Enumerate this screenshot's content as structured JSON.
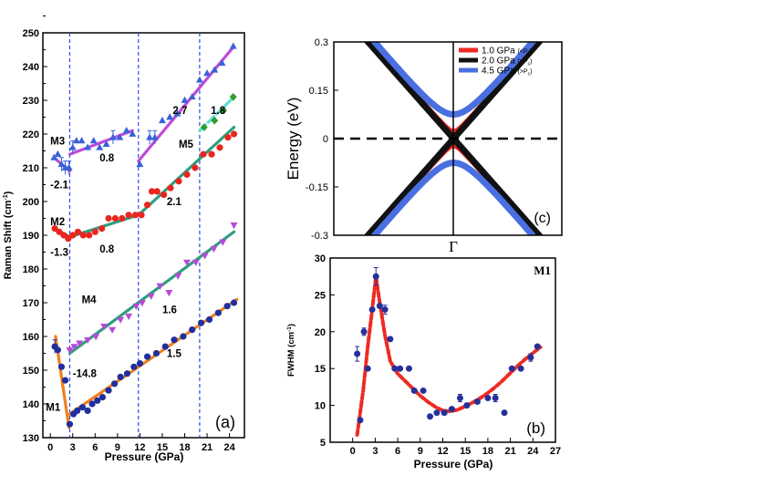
{
  "chart_data": [
    {
      "type": "scatter",
      "panel_label": "(a)",
      "xlabel": "Pressure (GPa)",
      "ylabel": "Raman Shift (cm",
      "ylabel_unit_sup": "-1",
      "ylabel_close": ")",
      "xlim": [
        -1,
        26
      ],
      "ylim": [
        130,
        250
      ],
      "xticks": [
        0,
        3,
        6,
        9,
        12,
        15,
        18,
        21,
        24
      ],
      "yticks": [
        130,
        140,
        150,
        160,
        170,
        180,
        190,
        200,
        210,
        220,
        230,
        240,
        250
      ],
      "transition_pressures": [
        2.6,
        11.8,
        20.0
      ],
      "marker_colors": {
        "M1": "#1f2f9e",
        "M2": "#e8261e",
        "M3": "#3a62d8",
        "M4": "#b64ad8",
        "M5": "#2e9e2e",
        "high": "#3a62d8"
      },
      "series": [
        {
          "name": "M1",
          "color": "#1f2f9e",
          "marker": "circle",
          "x": [
            0.6,
            1.0,
            1.5,
            2.0,
            2.6,
            3.1,
            3.6,
            4.3,
            5.0,
            5.6,
            6.3,
            7.0,
            7.8,
            8.6,
            9.4,
            10.3,
            11.2,
            12.0,
            13.0,
            14.2,
            15.4,
            16.6,
            17.8,
            19.0,
            20.2,
            21.3,
            22.5,
            23.7,
            24.6
          ],
          "y": [
            157,
            156,
            151,
            147,
            134,
            137,
            138,
            139,
            138,
            140,
            141,
            142,
            144,
            146,
            148,
            149,
            151,
            152,
            154,
            155,
            157,
            159,
            160,
            162,
            164,
            165,
            167,
            169,
            170
          ],
          "errors": [
            2,
            0,
            0,
            0,
            0,
            0,
            0,
            0,
            0,
            0,
            0,
            0,
            0,
            0,
            0,
            0,
            0,
            0,
            0,
            0,
            0,
            0,
            0,
            0,
            0,
            0,
            0,
            0,
            0
          ]
        },
        {
          "name": "M2",
          "color": "#e8261e",
          "marker": "circle",
          "x": [
            0.6,
            1.2,
            1.8,
            2.4,
            3.0,
            3.7,
            4.4,
            5.2,
            6.0,
            6.9,
            7.8,
            8.7,
            9.6,
            10.5,
            11.4,
            12.2,
            13.0,
            13.6,
            14.3,
            15.2,
            16.1,
            17.2,
            18.3,
            19.4,
            20.5,
            21.6,
            22.7,
            23.8,
            24.6
          ],
          "y": [
            192,
            191,
            190,
            189,
            190,
            191,
            190,
            190,
            191,
            192,
            195,
            195,
            195,
            196,
            196,
            196,
            199,
            203,
            203,
            202,
            204,
            206,
            208,
            210,
            214,
            214,
            216,
            219,
            220
          ]
        },
        {
          "name": "M3",
          "color": "#3a62d8",
          "marker": "triangle",
          "x": [
            0.5,
            1.0,
            1.5,
            2.0,
            2.5,
            3.0,
            3.5,
            4.2,
            5.0,
            5.8,
            6.6,
            7.5,
            8.4,
            9.3,
            10.2,
            11.0
          ],
          "y": [
            213,
            214,
            211,
            210,
            210,
            216,
            218,
            218,
            216,
            218,
            216,
            217,
            219,
            219,
            221,
            220
          ],
          "errors": [
            0,
            0,
            2,
            2,
            2,
            2,
            0,
            0,
            0,
            0,
            0,
            0,
            2,
            0,
            0,
            0
          ]
        },
        {
          "name": "high",
          "color": "#3a62d8",
          "marker": "triangle",
          "x": [
            12.0,
            13.3,
            14.0,
            15.0,
            16.0,
            17.0,
            18.0,
            19.0,
            20.0,
            21.0,
            22.0,
            23.0,
            24.5
          ],
          "y": [
            211,
            219,
            219,
            224,
            225,
            226,
            230,
            231,
            236,
            238,
            239,
            241,
            246
          ],
          "errors": [
            0,
            2,
            2,
            0,
            0,
            0,
            0,
            0,
            0,
            0,
            0,
            0,
            0
          ]
        },
        {
          "name": "M4",
          "color": "#b64ad8",
          "marker": "triangle-down",
          "x": [
            2.6,
            3.2,
            3.9,
            5.0,
            6.1,
            7.2,
            8.3,
            9.4,
            10.5,
            11.5,
            12.3,
            13.5,
            14.7,
            15.9,
            17.1,
            18.3,
            19.5,
            20.7,
            21.9,
            23.1,
            24.6
          ],
          "y": [
            156,
            157,
            158,
            159,
            160,
            163,
            162,
            165,
            166,
            169,
            170,
            172,
            175,
            173,
            178,
            182,
            182,
            184,
            186,
            188,
            193
          ]
        },
        {
          "name": "M5",
          "color": "#2e9e2e",
          "marker": "diamond",
          "x": [
            20.6,
            22.0,
            23.2,
            24.5
          ],
          "y": [
            222,
            224,
            227,
            231
          ]
        }
      ],
      "fits": [
        {
          "name": "M1 fit (low)",
          "color": "#f0801e",
          "x": [
            0.7,
            2.5
          ],
          "y": [
            160,
            133
          ]
        },
        {
          "name": "M1 fit (high)",
          "color": "#f0801e",
          "x": [
            2.6,
            25.0
          ],
          "y": [
            137,
            171
          ]
        },
        {
          "name": "M2 fit (low)",
          "color": "#a84440",
          "x": [
            0.5,
            2.6
          ],
          "y": [
            192,
            189.5
          ]
        },
        {
          "name": "M2 fit (mid)",
          "color": "#2e9e7e",
          "x": [
            2.6,
            11.8
          ],
          "y": [
            189.5,
            196
          ]
        },
        {
          "name": "M2 fit (high)",
          "color": "#2e9e7e",
          "x": [
            11.8,
            24.6
          ],
          "y": [
            196,
            222
          ]
        },
        {
          "name": "M3 fit (low)",
          "color": "#c04ad8",
          "x": [
            0.5,
            2.6
          ],
          "y": [
            213,
            209
          ]
        },
        {
          "name": "M3 fit (mid)",
          "color": "#c04ad8",
          "x": [
            2.6,
            11.0
          ],
          "y": [
            214,
            221
          ]
        },
        {
          "name": "high fit",
          "color": "#c04ad8",
          "x": [
            11.8,
            24.6
          ],
          "y": [
            212,
            246
          ]
        },
        {
          "name": "M4 fit",
          "color": "#2e9e7e",
          "x": [
            2.6,
            24.6
          ],
          "y": [
            155,
            191
          ]
        },
        {
          "name": "M5 fit",
          "color": "#5fe0d2",
          "x": [
            20.0,
            24.6
          ],
          "y": [
            221,
            231
          ]
        }
      ],
      "annotations": [
        {
          "text": "M3",
          "x": 0.0,
          "y": 218
        },
        {
          "text": "-2.1",
          "x": 0.0,
          "y": 205
        },
        {
          "text": "0.8",
          "x": 6.6,
          "y": 213
        },
        {
          "text": "M2",
          "x": 0.0,
          "y": 194
        },
        {
          "text": "-1.3",
          "x": 0.0,
          "y": 185
        },
        {
          "text": "0.8",
          "x": 6.6,
          "y": 186
        },
        {
          "text": "2.1",
          "x": 15.6,
          "y": 200
        },
        {
          "text": "M4",
          "x": 4.2,
          "y": 171
        },
        {
          "text": "1.6",
          "x": 15.0,
          "y": 168
        },
        {
          "text": "1.5",
          "x": 15.6,
          "y": 155
        },
        {
          "text": "-14.8",
          "x": 3.0,
          "y": 149
        },
        {
          "text": "M1",
          "x": -0.6,
          "y": 139
        },
        {
          "text": "2.7",
          "x": 16.4,
          "y": 227
        },
        {
          "text": "1.8",
          "x": 21.5,
          "y": 227
        },
        {
          "text": "M5",
          "x": 17.2,
          "y": 217
        }
      ]
    },
    {
      "type": "line",
      "panel_label": "(c)",
      "xlabel": "Γ",
      "ylabel": "Energy (eV)",
      "ylim": [
        -0.3,
        0.3
      ],
      "xlim": [
        -1,
        1
      ],
      "yticks": [
        -0.3,
        -0.15,
        0,
        0.15,
        0.3
      ],
      "ytick_labels": [
        "-0.3",
        "-0.15",
        "0",
        "0.15",
        "0.3"
      ],
      "legend": [
        {
          "label": "1.0 GPa",
          "tag": "(<P",
          "tag_sub": "c",
          "tag_close": ")",
          "color": "#ee2a24"
        },
        {
          "label": "2.0 GPa",
          "tag": "(=P",
          "tag_sub": "c",
          "tag_close": ")",
          "color": "#111111"
        },
        {
          "label": "4.5 GPa",
          "tag": "(>P",
          "tag_sub": "c",
          "tag_close": ")",
          "color": "#4a6fe0"
        }
      ],
      "bands": [
        {
          "name": "1.0 GPa",
          "color": "#ee2a24",
          "gap": 0.02,
          "velocity": 0.4
        },
        {
          "name": "2.0 GPa",
          "color": "#111111",
          "gap": 0.0,
          "velocity": 0.4
        },
        {
          "name": "4.5 GPa",
          "color": "#4a6fe0",
          "gap": 0.075,
          "velocity": 0.42
        }
      ]
    },
    {
      "type": "scatter",
      "panel_label": "(b)",
      "title": "M1",
      "xlabel": "Pressure (GPa)",
      "ylabel": "FWHM (cm",
      "ylabel_unit_sup": "-1",
      "ylabel_close": ")",
      "xlim": [
        -3,
        27
      ],
      "ylim": [
        5,
        30
      ],
      "xticks": [
        0,
        3,
        6,
        9,
        12,
        15,
        18,
        21,
        24,
        27
      ],
      "yticks": [
        5,
        10,
        15,
        20,
        25,
        30
      ],
      "series": [
        {
          "name": "M1 FWHM",
          "color": "#25309a",
          "marker": "circle",
          "x": [
            0.6,
            1.0,
            1.5,
            2.0,
            2.6,
            3.1,
            3.6,
            4.3,
            5.0,
            5.6,
            6.3,
            7.5,
            8.2,
            9.4,
            10.3,
            11.2,
            12.2,
            13.2,
            14.3,
            15.2,
            16.6,
            18.0,
            19.0,
            20.2,
            21.2,
            22.4,
            23.7,
            24.6
          ],
          "y": [
            17,
            8,
            20,
            15,
            23,
            27.5,
            23.5,
            23,
            19,
            15,
            15,
            15,
            12,
            12,
            8.5,
            9,
            9,
            9.5,
            11,
            10,
            10.5,
            11,
            11,
            9,
            15,
            15,
            16.5,
            18
          ],
          "errors": [
            1,
            0,
            0.5,
            0,
            0,
            1.2,
            0,
            0.6,
            0,
            0,
            0,
            0,
            0,
            0,
            0,
            0,
            0,
            0,
            0.5,
            0,
            0,
            0,
            0.5,
            0,
            0,
            0,
            0.5,
            0
          ]
        }
      ],
      "fit": {
        "color": "#ee2a24",
        "style": "dashed",
        "x": [
          0.6,
          1.4,
          2.0,
          2.6,
          3.1,
          3.6,
          4.3,
          5.0,
          6.0,
          7.0,
          8.0,
          9.0,
          10.0,
          11.0,
          12.0,
          13.0,
          14.0,
          15.0,
          16.0,
          17.0,
          18.0,
          19.0,
          20.0,
          21.0,
          22.0,
          23.0,
          24.0,
          25.0
        ],
        "y": [
          6,
          12,
          18,
          23,
          27.5,
          24,
          19.5,
          16,
          14.3,
          13.3,
          12.3,
          11.3,
          10.5,
          9.8,
          9.3,
          9.2,
          9.4,
          9.9,
          10.4,
          11.0,
          11.7,
          12.5,
          13.4,
          14.4,
          15.4,
          16.3,
          17.1,
          17.9
        ]
      }
    }
  ]
}
